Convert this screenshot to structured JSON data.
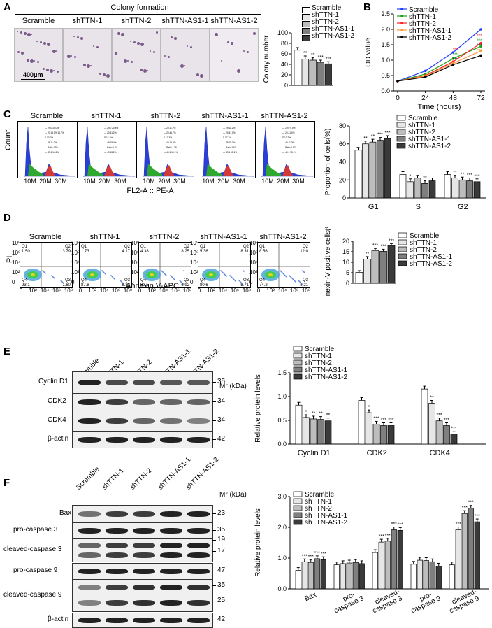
{
  "panels": {
    "A": "A",
    "B": "B",
    "C": "C",
    "D": "D",
    "E": "E",
    "F": "F"
  },
  "groups": [
    "Scramble",
    "shTTN-1",
    "shTTN-2",
    "shTTN-AS1-1",
    "shTTN-AS1-2"
  ],
  "colors": [
    "#ffffff",
    "#e6e6e6",
    "#bdbdbd",
    "#7f7f7f",
    "#3a3a3a"
  ],
  "panelA": {
    "title": "Colony formation",
    "scale": "400μm",
    "ylabel": "Colony number"
  },
  "panelB": {
    "xlabel": "Time (hours)",
    "ylabel": "OD value",
    "line_colors": [
      "#1f3fff",
      "#16a316",
      "#ff2020",
      "#ff9a3c",
      "#000000"
    ]
  },
  "panelC": {
    "ylabel_flow": "Count",
    "xlabel_flow": "FL2-A :: PE-A",
    "xticks_flow": [
      "10M",
      "20M",
      "30M"
    ],
    "ylabel_bar": "Proportion of cells(%)",
    "gate_text": [
      [
        "— 29.0 15.0%",
        "— 20.19.0% 14.7%",
        "S 10.0%",
        "— 49.11.0%",
        "— Ratio 1.56",
        "— 49.1 14.2%"
      ],
      [
        "— 29.0 20.8%",
        "— 20.31.2%",
        "S 14.2%",
        "— 49.18.4%",
        "— Ratio 1.74",
        "— 49 15.2%"
      ],
      [
        "— 29.11.2%",
        "— 20.41.7%",
        "S 17.3%",
        "— 49.15.8%",
        "— Ratio 1.78",
        "— 49.1 15.1%"
      ],
      [
        "— 29.11.2%",
        "— 20.41.0%",
        "S 17.2%",
        "— 49.11.0%",
        "— Ratio 1.63",
        "— 49.1 15.1%"
      ],
      [
        "— 29.0 9.0%",
        "— 20.41.0%",
        "S 13.2%",
        "— 49.11.0%",
        "— Ratio 1.62",
        "— 49.1 15.1%"
      ]
    ]
  },
  "panelD": {
    "ylabel_flow": "PI",
    "xlabel_flow": "Annexin V-APC",
    "yticks_flow": [
      "10⁸",
      "10⁶",
      "10⁴",
      "10²",
      "0"
    ],
    "xticks_flow": [
      "0",
      "10²",
      "10⁴",
      "10⁶",
      "10⁸"
    ],
    "quadrants": [
      {
        "q1": "Q1",
        "q1v": "1.50",
        "q2": "Q2",
        "q2v": "3.79",
        "q3": "Q3",
        "q3v": "1.60",
        "q4": "Q4",
        "q4v": "93.1"
      },
      {
        "q1": "Q1",
        "q1v": "1.73",
        "q2": "Q2",
        "q2v": "4.17",
        "q3": "Q3",
        "q3v": "6.33",
        "q4": "Q4",
        "q4v": "87.8"
      },
      {
        "q1": "Q1",
        "q1v": "4.38",
        "q2": "Q2",
        "q2v": "8.25",
        "q3": "Q3",
        "q3v": "6.92",
        "q4": "Q4",
        "q4v": "80.5"
      },
      {
        "q1": "Q1",
        "q1v": "5.36",
        "q2": "Q2",
        "q2v": "8.31",
        "q3": "Q3",
        "q3v": "5.71",
        "q4": "Q4",
        "q4v": "80.6"
      },
      {
        "q1": "Q1",
        "q1v": "8.56",
        "q2": "Q2",
        "q2v": "12.0",
        "q3": "Q3",
        "q3v": "5.21",
        "q4": "Q4",
        "q4v": "74.2"
      }
    ],
    "ylabel_bar": "Annexin-V positive cells(%)"
  },
  "panelE": {
    "mr_label": "Mr (kDa)",
    "rows": [
      {
        "name": "Cyclin D1",
        "mr": "35"
      },
      {
        "name": "CDK2",
        "mr": "34"
      },
      {
        "name": "CDK4",
        "mr": "34"
      },
      {
        "name": "β-actin",
        "mr": "42"
      }
    ],
    "ylabel_bar": "Relative protein levels"
  },
  "panelF": {
    "mr_label": "Mr (kDa)",
    "rows": [
      {
        "name": "Bax",
        "mr": [
          "23"
        ]
      },
      {
        "name": "pro-caspase 3",
        "mr": [
          "35"
        ]
      },
      {
        "name": "cleaved-caspase 3",
        "mr": [
          "19",
          "17"
        ]
      },
      {
        "name": "pro-caspase 9",
        "mr": [
          "47"
        ]
      },
      {
        "name": "cleaved-caspase 9",
        "mr": [
          "35",
          "25"
        ]
      },
      {
        "name": "β-actin",
        "mr": [
          "42"
        ]
      }
    ],
    "ylabel_bar": "Relative protein levels"
  },
  "chart_data": [
    {
      "id": "A",
      "type": "bar",
      "categories": [
        "Scramble",
        "shTTN-1",
        "shTTN-2",
        "shTTN-AS1-1",
        "shTTN-AS1-2"
      ],
      "values": [
        67,
        50,
        48,
        44,
        41
      ],
      "errors": [
        5,
        6,
        5,
        4,
        4
      ],
      "sig": [
        "",
        "**",
        "**",
        "***",
        "***"
      ],
      "ylabel": "Colony number",
      "ylim": [
        0,
        100
      ],
      "yticks": [
        "0",
        "20",
        "40",
        "60",
        "80",
        "100"
      ],
      "legend": "right"
    },
    {
      "id": "B",
      "type": "line",
      "x": [
        0,
        24,
        48,
        72
      ],
      "xticks": [
        "0",
        "24",
        "48",
        "72"
      ],
      "yticks": [
        "0.0",
        "0.5",
        "1.0",
        "1.5",
        "2.0",
        "2.5"
      ],
      "ylim": [
        0,
        2.5
      ],
      "xlabel": "Time (hours)",
      "ylabel": "OD value",
      "series": [
        {
          "name": "Scramble",
          "values": [
            0.32,
            0.65,
            1.25,
            2.0
          ]
        },
        {
          "name": "shTTN-1",
          "values": [
            0.32,
            0.55,
            1.05,
            1.45
          ]
        },
        {
          "name": "shTTN-2",
          "values": [
            0.32,
            0.5,
            0.95,
            1.55
          ]
        },
        {
          "name": "shTTN-AS1-1",
          "values": [
            0.32,
            0.48,
            0.9,
            1.3
          ]
        },
        {
          "name": "shTTN-AS1-2",
          "values": [
            0.32,
            0.45,
            0.85,
            1.15
          ]
        }
      ],
      "sig_48": [
        "***",
        "***",
        "***",
        "***"
      ],
      "sig_72": [
        "***",
        "***",
        "***",
        "***"
      ],
      "legend": "top-left"
    },
    {
      "id": "C",
      "type": "bar",
      "categories": [
        "G1",
        "S",
        "G2"
      ],
      "yticks": [
        "0",
        "20",
        "40",
        "60",
        "80"
      ],
      "ylim": [
        0,
        80
      ],
      "ylabel": "Proportion of cells(%)",
      "series": [
        {
          "name": "Scramble",
          "values": [
            53,
            26,
            26
          ]
        },
        {
          "name": "shTTN-1",
          "values": [
            60,
            18,
            22
          ]
        },
        {
          "name": "shTTN-2",
          "values": [
            62,
            22,
            20
          ]
        },
        {
          "name": "shTTN-AS1-1",
          "values": [
            64,
            16,
            19
          ]
        },
        {
          "name": "shTTN-AS1-2",
          "values": [
            66,
            19,
            18
          ]
        }
      ],
      "sig": [
        [
          "",
          "**",
          "**",
          "***",
          "***"
        ],
        [
          "",
          "*",
          "",
          "**",
          ""
        ],
        [
          "",
          "**",
          "**",
          "***",
          "***"
        ]
      ],
      "legend": "top-right"
    },
    {
      "id": "D",
      "type": "bar",
      "categories": [
        "Scramble",
        "shTTN-1",
        "shTTN-2",
        "shTTN-AS1-1",
        "shTTN-AS1-2"
      ],
      "values": [
        5.2,
        11.5,
        15.6,
        15.2,
        18.0
      ],
      "errors": [
        0.8,
        1.2,
        1.0,
        1.0,
        0.9
      ],
      "sig": [
        "",
        "**",
        "***",
        "***",
        "***"
      ],
      "yticks": [
        "0",
        "5",
        "10",
        "15",
        "20"
      ],
      "ylim": [
        0,
        20
      ],
      "ylabel": "Annexin-V positive cells(%)",
      "legend": "right"
    },
    {
      "id": "E",
      "type": "bar",
      "categories": [
        "Cyclin D1",
        "CDK2",
        "CDK4"
      ],
      "yticks": [
        "0.0",
        "0.5",
        "1.0",
        "1.5"
      ],
      "ylim": [
        0,
        1.5
      ],
      "ylabel": "Relative protein levels",
      "series": [
        {
          "name": "Scramble",
          "values": [
            0.82,
            0.92,
            1.16
          ]
        },
        {
          "name": "shTTN-1",
          "values": [
            0.56,
            0.66,
            0.86
          ]
        },
        {
          "name": "shTTN-2",
          "values": [
            0.53,
            0.42,
            0.49
          ]
        },
        {
          "name": "shTTN-AS1-1",
          "values": [
            0.52,
            0.39,
            0.39
          ]
        },
        {
          "name": "shTTN-AS1-2",
          "values": [
            0.49,
            0.39,
            0.21
          ]
        }
      ],
      "sig": [
        [
          "",
          "*",
          "**",
          "**",
          "**"
        ],
        [
          "",
          "*",
          "***",
          "***",
          "***"
        ],
        [
          "",
          "**",
          "***",
          "***",
          "***"
        ]
      ],
      "legend": "top"
    },
    {
      "id": "F",
      "type": "bar",
      "categories": [
        "Bax",
        "pro-caspase 3",
        "cleaved-caspase 3",
        "pro-caspase 9",
        "cleaved-caspase 9"
      ],
      "category_lines": [
        [
          "Bax"
        ],
        [
          "pro-",
          "caspase 3"
        ],
        [
          "cleaved-",
          "caspase 3"
        ],
        [
          "pro-",
          "caspase 9"
        ],
        [
          "cleaved-",
          "caspase 9"
        ]
      ],
      "yticks": [
        "0.0",
        "1.0",
        "2.0",
        "3.0"
      ],
      "ylim": [
        0,
        3.0
      ],
      "ylabel": "Relative protein levels",
      "series": [
        {
          "name": "Scramble",
          "values": [
            0.6,
            0.78,
            1.18,
            0.8,
            0.78
          ]
        },
        {
          "name": "shTTN-1",
          "values": [
            0.88,
            0.82,
            1.52,
            0.93,
            1.92
          ]
        },
        {
          "name": "shTTN-2",
          "values": [
            0.86,
            0.84,
            1.55,
            0.92,
            2.45
          ]
        },
        {
          "name": "shTTN-AS1-1",
          "values": [
            0.98,
            0.86,
            1.92,
            0.88,
            2.62
          ]
        },
        {
          "name": "shTTN-AS1-2",
          "values": [
            0.95,
            0.82,
            1.9,
            0.74,
            2.18
          ]
        }
      ],
      "sig": [
        [
          "",
          "***",
          "***",
          "***",
          "***"
        ],
        [
          "",
          "",
          "",
          "",
          ""
        ],
        [
          "",
          "***",
          "***",
          "***",
          "***"
        ],
        [
          "",
          "",
          "",
          "",
          ""
        ],
        [
          "",
          "***",
          "***",
          "***",
          "***"
        ]
      ],
      "legend": "top"
    }
  ]
}
